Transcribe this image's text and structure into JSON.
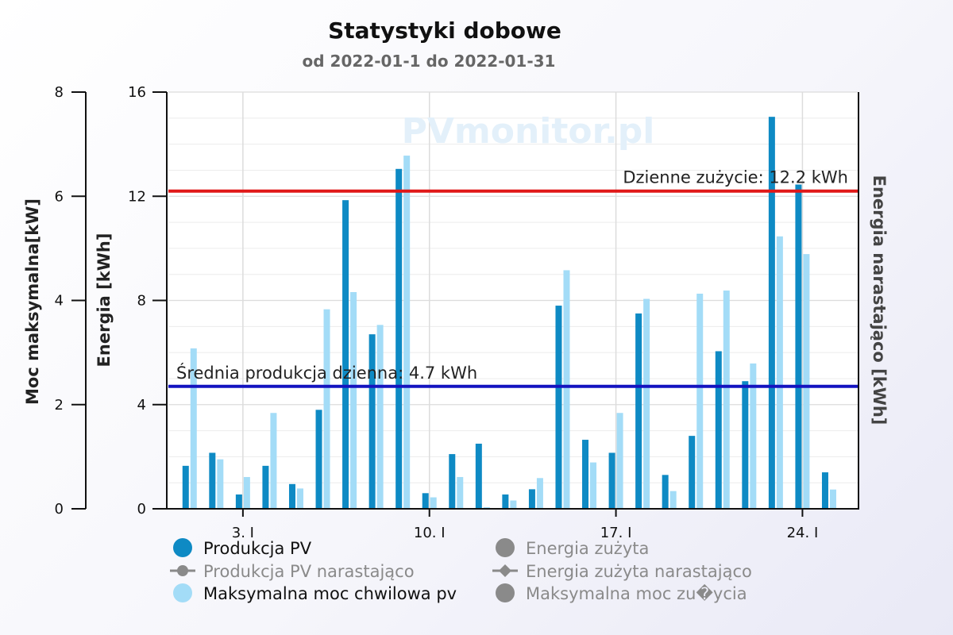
{
  "chart_data": {
    "type": "bar",
    "title": "Statystyki dobowe",
    "subtitle": "od 2022-01-1 do 2022-01-31",
    "watermark": "PVmonitor.pl",
    "x_tick_labels": [
      {
        "day": 3,
        "label": "3. I"
      },
      {
        "day": 10,
        "label": "10. I"
      },
      {
        "day": 17,
        "label": "17. I"
      },
      {
        "day": 24,
        "label": "24. I"
      }
    ],
    "y_left_outer": {
      "label": "Moc maksymalna[kW]",
      "ylim": [
        0,
        8
      ],
      "ticks": [
        0,
        2,
        4,
        6,
        8
      ]
    },
    "y_left_inner": {
      "label": "Energia [kWh]",
      "ylim": [
        0,
        16
      ],
      "ticks": [
        0,
        4,
        8,
        12,
        16
      ]
    },
    "y_right": {
      "label": "Energia narastająco [kWh]"
    },
    "grid": true,
    "days": [
      1,
      2,
      3,
      4,
      5,
      6,
      7,
      8,
      9,
      10,
      11,
      12,
      13,
      14,
      15,
      16,
      17,
      18,
      19,
      20,
      21,
      22,
      23,
      24,
      25
    ],
    "series": [
      {
        "name": "Produkcja PV",
        "axis": "energy_kwh",
        "color": "#0e8ac4",
        "values": [
          1.65,
          2.15,
          0.55,
          1.65,
          0.95,
          3.8,
          11.85,
          6.7,
          13.05,
          0.6,
          2.1,
          2.5,
          0.55,
          0.75,
          7.8,
          2.65,
          2.15,
          7.5,
          1.3,
          2.8,
          6.05,
          4.9,
          15.05,
          12.45,
          1.4
        ]
      },
      {
        "name": "Maksymalna moc chwilowa pv",
        "axis": "power_kw",
        "color": "#a3dcf7",
        "values": [
          3.08,
          0.95,
          0.61,
          1.84,
          0.39,
          3.83,
          4.16,
          3.53,
          6.78,
          0.22,
          0.61,
          0.03,
          0.16,
          0.59,
          4.58,
          0.89,
          1.84,
          4.03,
          0.34,
          4.13,
          4.19,
          2.79,
          5.23,
          4.89,
          0.37
        ]
      }
    ],
    "plot_lines": [
      {
        "label": "Dzienne zużycie: 12.2 kWh",
        "value": 12.2,
        "axis": "energy_kwh",
        "color": "#e01818"
      },
      {
        "label": "Średnia produkcja dzienna: 4.7 kWh",
        "value": 4.7,
        "axis": "energy_kwh",
        "color": "#1414c0"
      }
    ],
    "legend": {
      "placement": "bottom",
      "items": [
        {
          "label": "Produkcja PV",
          "symbol": "circle",
          "color": "#0e8ac4",
          "enabled": true
        },
        {
          "label": "Energia zużyta",
          "symbol": "circle",
          "color": "#8a8a8a",
          "enabled": false
        },
        {
          "label": "Produkcja PV narastająco",
          "symbol": "line-circle",
          "color": "#8a8a8a",
          "enabled": false
        },
        {
          "label": "Energia zużyta narastająco",
          "symbol": "line-diamond",
          "color": "#8a8a8a",
          "enabled": false
        },
        {
          "label": "Maksymalna moc chwilowa pv",
          "symbol": "circle",
          "color": "#a3dcf7",
          "enabled": true
        },
        {
          "label": "Maksymalna moc zu�ycia",
          "symbol": "circle",
          "color": "#8a8a8a",
          "enabled": false
        }
      ]
    }
  }
}
